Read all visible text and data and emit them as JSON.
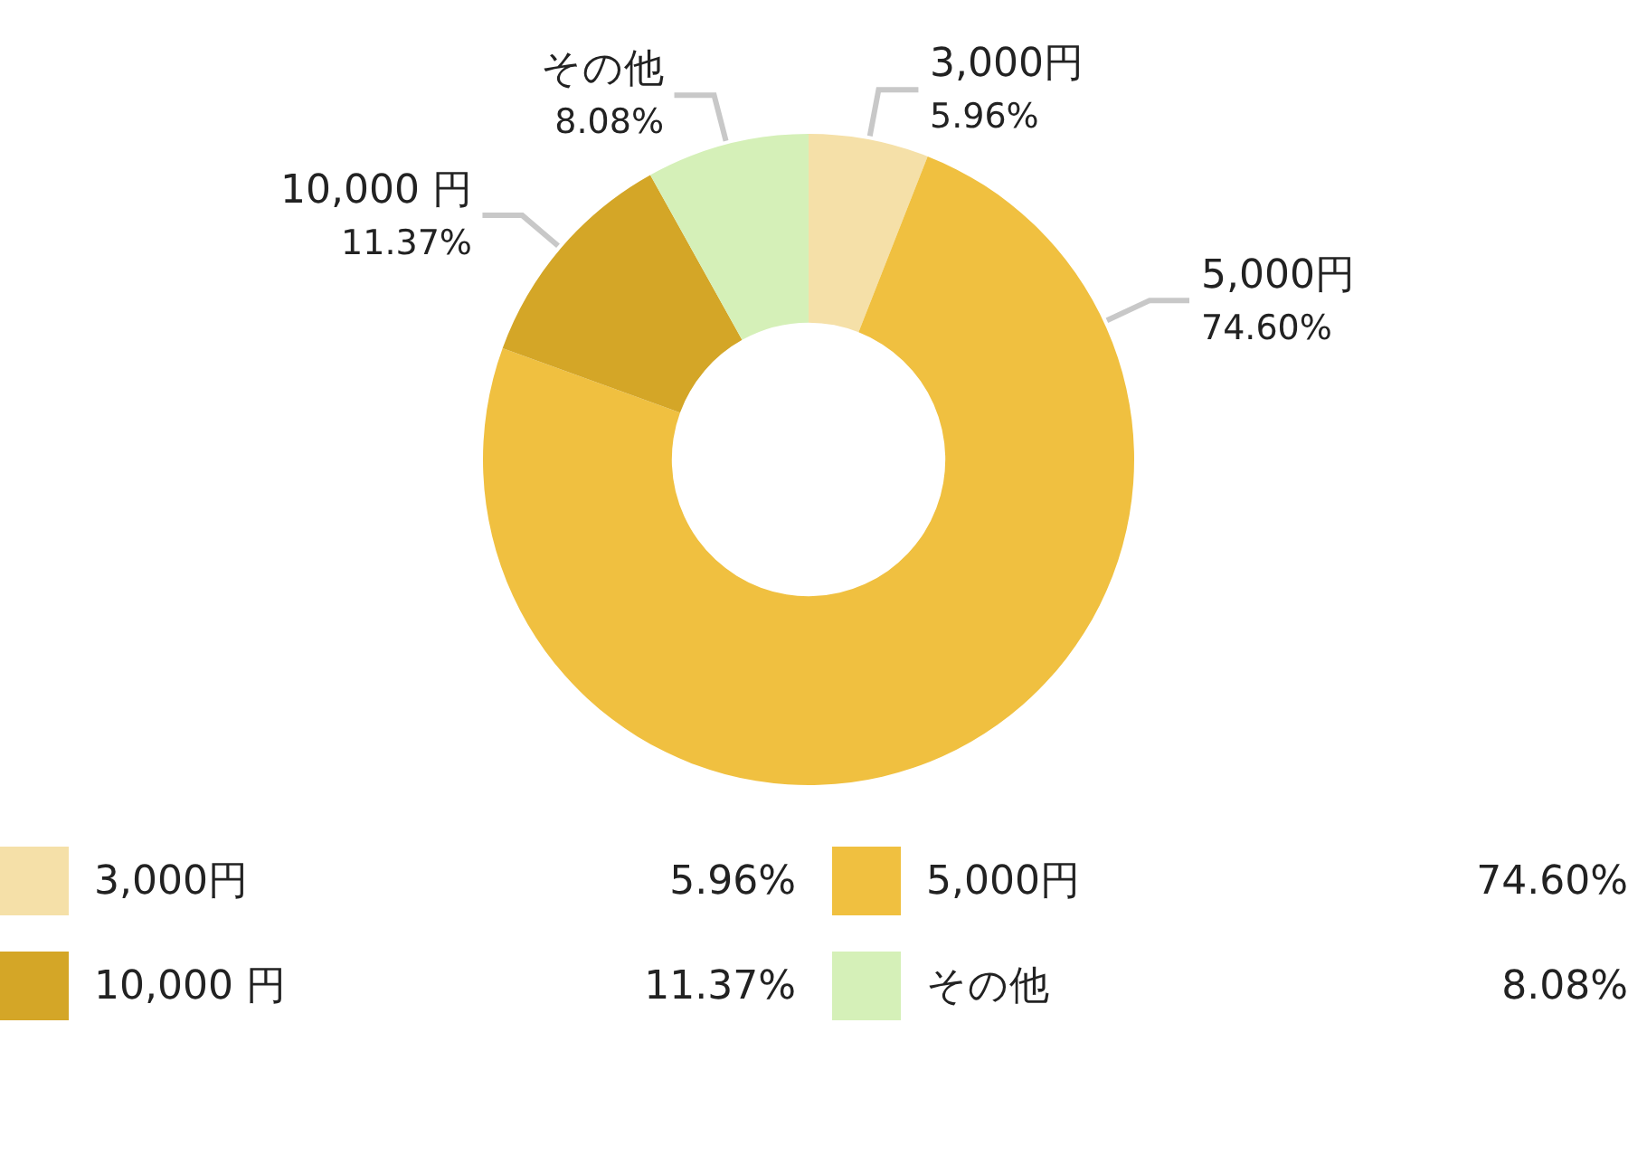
{
  "chart_data": {
    "type": "donut",
    "categories": [
      "3,000円",
      "5,000円",
      "10,000 円",
      "その他"
    ],
    "values": [
      5.96,
      74.6,
      11.37,
      8.08
    ],
    "value_labels": [
      "5.96%",
      "74.60%",
      "11.37%",
      "8.08%"
    ],
    "colors": [
      "#f5e0a8",
      "#f0c040",
      "#d4a627",
      "#d5f0b8"
    ],
    "legend": "bottom"
  }
}
